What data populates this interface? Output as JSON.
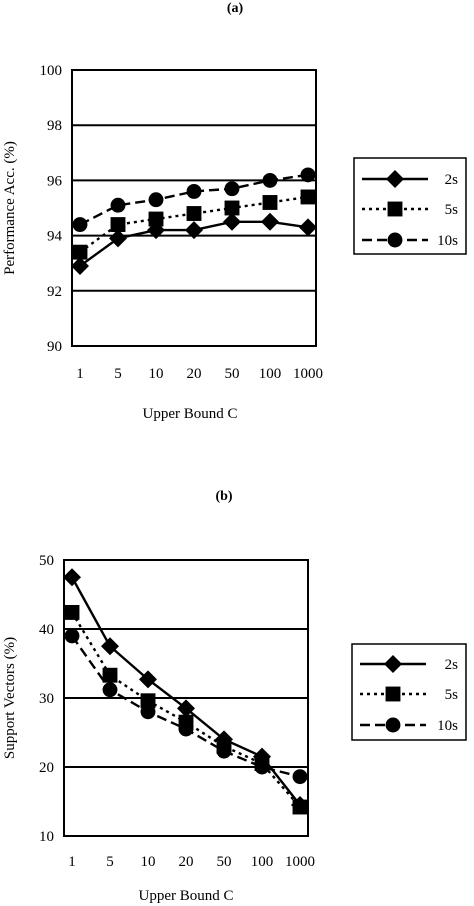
{
  "chart_data": [
    {
      "type": "line",
      "panel_label": "(a)",
      "xlabel": "Upper Bound C",
      "ylabel": "Performance Acc. (%)",
      "categories": [
        "1",
        "5",
        "10",
        "20",
        "50",
        "100",
        "1000"
      ],
      "ylim": [
        90,
        100
      ],
      "yticks": [
        "90",
        "92",
        "94",
        "96",
        "98",
        "100"
      ],
      "grid": "horizontal",
      "legend_position": "right",
      "series": [
        {
          "name": "2s",
          "marker": "diamond",
          "line": "solid",
          "values": [
            92.9,
            93.9,
            94.2,
            94.2,
            94.5,
            94.5,
            94.3
          ]
        },
        {
          "name": "5s",
          "marker": "square",
          "line": "dotted",
          "values": [
            93.4,
            94.4,
            94.6,
            94.8,
            95.0,
            95.2,
            95.4
          ]
        },
        {
          "name": "10s",
          "marker": "circle",
          "line": "dashed",
          "values": [
            94.4,
            95.1,
            95.3,
            95.6,
            95.7,
            96.0,
            96.2
          ]
        }
      ]
    },
    {
      "type": "line",
      "panel_label": "(b)",
      "xlabel": "Upper Bound C",
      "ylabel": "Support Vectors (%)",
      "categories": [
        "1",
        "5",
        "10",
        "20",
        "50",
        "100",
        "1000"
      ],
      "ylim": [
        10,
        50
      ],
      "yticks": [
        "10",
        "20",
        "30",
        "40",
        "50"
      ],
      "grid": "horizontal",
      "legend_position": "right",
      "series": [
        {
          "name": "2s",
          "marker": "diamond",
          "line": "solid",
          "values": [
            47.5,
            37.5,
            32.7,
            28.5,
            24.0,
            21.5,
            14.5
          ]
        },
        {
          "name": "5s",
          "marker": "square",
          "line": "dotted",
          "values": [
            42.4,
            33.3,
            29.6,
            26.5,
            23.0,
            20.5,
            14.2
          ]
        },
        {
          "name": "10s",
          "marker": "circle",
          "line": "dashed",
          "values": [
            39.0,
            31.2,
            28.0,
            25.5,
            22.3,
            20.0,
            18.6
          ]
        }
      ]
    }
  ]
}
